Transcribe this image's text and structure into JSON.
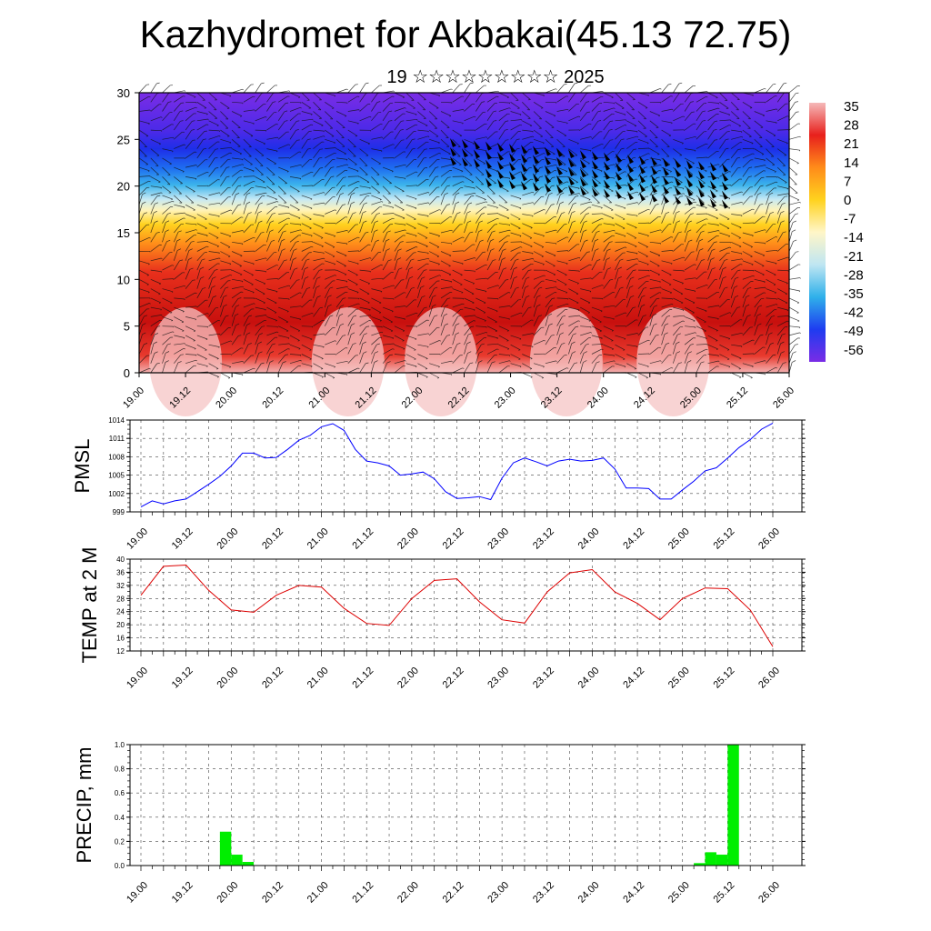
{
  "header": {
    "title": "Kazhydromet for Akbakai(45.13 72.75)",
    "subtitle": "19 ☆☆☆☆☆☆☆☆☆ 2025"
  },
  "x_ticks": [
    "19.00",
    "19.12",
    "20.00",
    "20.12",
    "21.00",
    "21.12",
    "22.00",
    "22.12",
    "23.00",
    "23.12",
    "24.00",
    "24.12",
    "25.00",
    "25.12",
    "26.00"
  ],
  "colorbar": {
    "labels": [
      "35",
      "28",
      "21",
      "14",
      "7",
      "0",
      "-7",
      "-14",
      "-21",
      "-28",
      "-35",
      "-42",
      "-49",
      "-56"
    ],
    "colors": [
      "#f5b9b9",
      "#e8201c",
      "#ff8c1a",
      "#ffd21e",
      "#fff6c8",
      "#bfe6f2",
      "#2fb0ea",
      "#1e3cf0",
      "#7a2ce6"
    ]
  },
  "chart_data": [
    {
      "type": "heatmap",
      "title": "",
      "ylabel": "",
      "ylim": [
        0,
        30
      ],
      "yticks": [
        "0",
        "5",
        "10",
        "15",
        "20",
        "25",
        "30"
      ],
      "color_range": [
        -56,
        35
      ],
      "annotation": "temperature-height cross section with wind barbs"
    },
    {
      "type": "line",
      "ylabel": "PMSL",
      "ylim": [
        999,
        1014
      ],
      "yticks": [
        "999",
        "1002",
        "1005",
        "1008",
        "1011",
        "1014"
      ],
      "color": "#0000ff",
      "x": [
        0,
        0.25,
        0.5,
        0.75,
        1,
        1.25,
        1.5,
        1.75,
        2,
        2.25,
        2.5,
        2.75,
        3,
        3.25,
        3.5,
        3.75,
        4,
        4.25,
        4.5,
        4.75,
        5,
        5.25,
        5.5,
        5.75,
        6,
        6.25,
        6.5,
        6.75,
        7,
        7.25,
        7.5,
        7.75,
        8,
        8.25,
        8.5,
        8.75,
        9,
        9.25,
        9.5,
        9.75,
        10,
        10.25,
        10.5,
        10.75,
        11,
        11.25,
        11.5,
        11.75,
        12,
        12.25,
        12.5,
        12.75,
        13,
        13.25,
        13.5,
        13.75,
        14
      ],
      "values": [
        999.8,
        1000.8,
        1000.3,
        1000.8,
        1001.1,
        1002.3,
        1003.5,
        1004.8,
        1006.5,
        1008.6,
        1008.6,
        1007.8,
        1007.9,
        1009.2,
        1010.7,
        1011.5,
        1012.9,
        1013.4,
        1012.3,
        1009.2,
        1007.3,
        1007.0,
        1006.5,
        1005.0,
        1005.2,
        1005.5,
        1004.4,
        1002.3,
        1001.2,
        1001.3,
        1001.5,
        1001.0,
        1004.5,
        1007.0,
        1007.8,
        1007.2,
        1006.5,
        1007.3,
        1007.6,
        1007.3,
        1007.4,
        1007.8,
        1006.0,
        1002.9,
        1002.9,
        1002.8,
        1001.1,
        1001.1,
        1002.6,
        1004.0,
        1005.7,
        1006.2,
        1007.8,
        1009.5,
        1010.8,
        1012.5,
        1013.5
      ]
    },
    {
      "type": "line",
      "ylabel": "TEMP at 2 M",
      "ylim": [
        12,
        40
      ],
      "yticks": [
        "12",
        "16",
        "20",
        "24",
        "28",
        "32",
        "36",
        "40"
      ],
      "color": "#dd0000",
      "x": [
        0,
        0.5,
        1,
        1.5,
        2,
        2.5,
        3,
        3.5,
        4,
        4.5,
        5,
        5.5,
        6,
        6.5,
        7,
        7.5,
        8,
        8.5,
        9,
        9.5,
        10,
        10.5,
        11,
        11.5,
        12,
        12.5,
        13,
        13.5,
        14
      ],
      "values": [
        29,
        37.8,
        38.2,
        30.5,
        24.5,
        23.8,
        29,
        32,
        31.5,
        25,
        20.4,
        19.8,
        28,
        33.5,
        34,
        27,
        21.5,
        20.5,
        30,
        35.8,
        36.8,
        30,
        26.5,
        21.5,
        28,
        31.2,
        31,
        24.5,
        13.3
      ]
    },
    {
      "type": "bar",
      "ylabel": "PRECIP, mm",
      "ylim": [
        0,
        1.0
      ],
      "yticks": [
        "0.0",
        "0.2",
        "0.4",
        "0.6",
        "0.8",
        "1.0"
      ],
      "color": "#00ee00",
      "x": [
        1.75,
        2.0,
        2.25,
        12.25,
        12.5,
        12.75,
        13.0
      ],
      "values": [
        0.28,
        0.09,
        0.03,
        0.02,
        0.11,
        0.09,
        1.0
      ]
    }
  ]
}
